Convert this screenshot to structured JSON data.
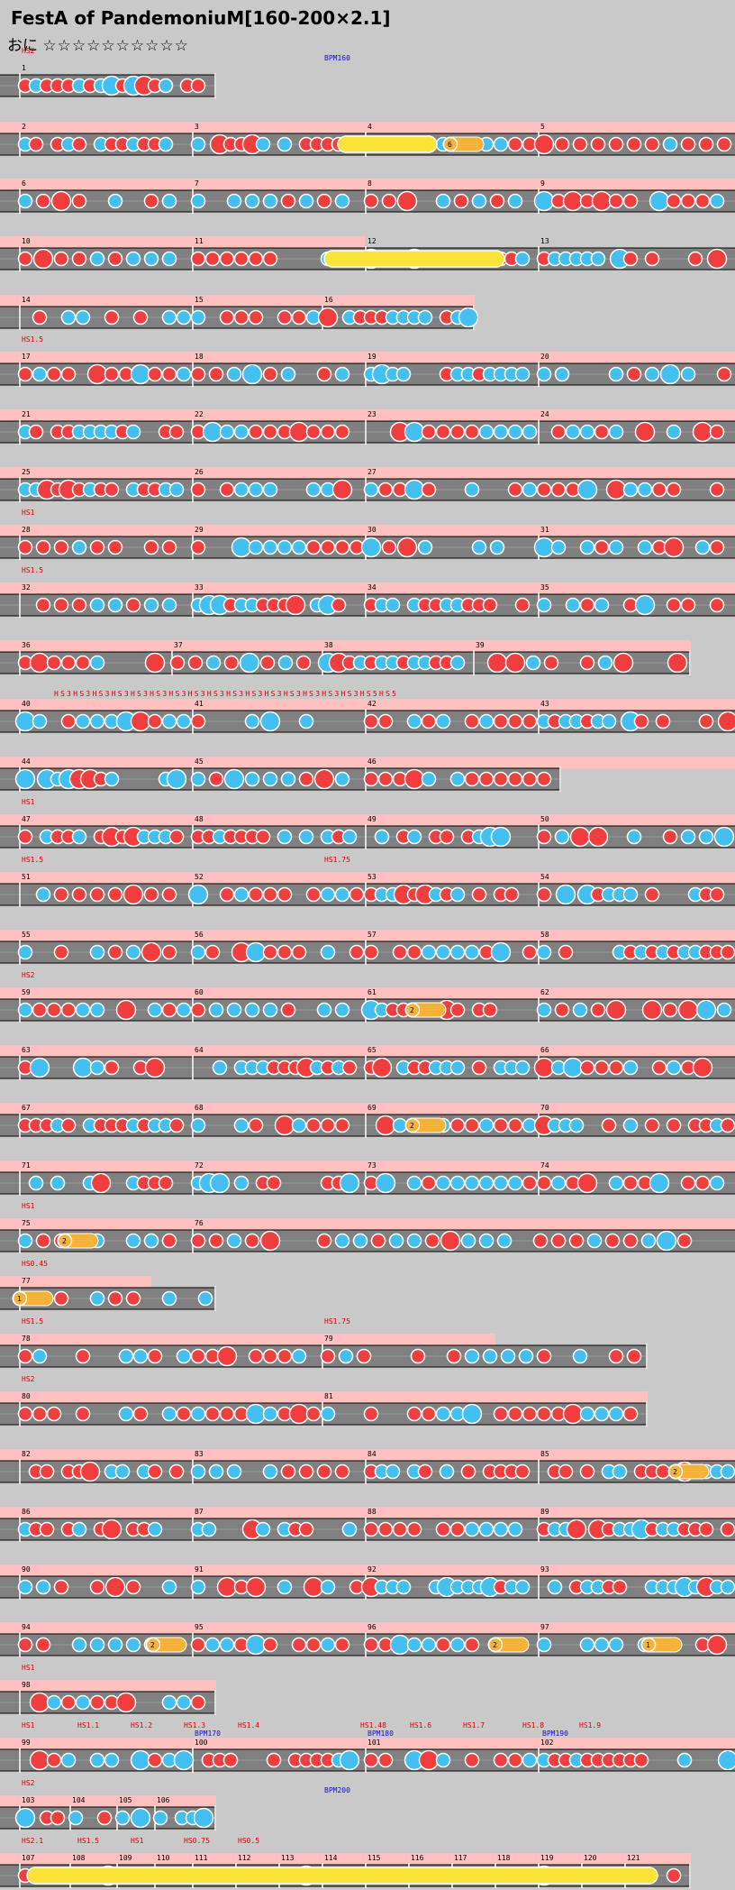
{
  "title": "FestA of PandemoniuM[160-200×2.1]",
  "difficulty_label": "おに",
  "stars": "☆☆☆☆☆☆☆☆☆☆",
  "colors": {
    "background": "#c9c9c9",
    "lane": "#808080",
    "pink": "#ffc0c0",
    "don": "#f03e3e",
    "ka": "#44c0f0",
    "drumroll": "#fbe43a",
    "balloon": "#f6b33a",
    "text_red": "#e00000",
    "text_blue": "#1010d0"
  },
  "rows": [
    {
      "bar_labels": [
        "1"
      ],
      "marker": [
        "HS2",
        "BPM160"
      ]
    },
    {
      "bar_labels": [
        "2",
        "3",
        "4",
        "5"
      ],
      "balloon_count": "6"
    },
    {
      "bar_labels": [
        "6",
        "7",
        "8",
        "9"
      ]
    },
    {
      "bar_labels": [
        "10",
        "11",
        "12",
        "13"
      ]
    },
    {
      "bar_labels": [
        "14",
        "15",
        "16"
      ]
    },
    {
      "bar_labels": [
        "17",
        "18",
        "19",
        "20"
      ],
      "marker": [
        "HS1.5"
      ]
    },
    {
      "bar_labels": [
        "21",
        "22",
        "23",
        "24"
      ]
    },
    {
      "bar_labels": [
        "25",
        "26",
        "27"
      ]
    },
    {
      "bar_labels": [
        "28",
        "29",
        "30",
        "31"
      ],
      "marker": [
        "HS1"
      ]
    },
    {
      "bar_labels": [
        "32",
        "33",
        "34",
        "35"
      ],
      "marker": [
        "HS1.5"
      ]
    },
    {
      "bar_labels": [
        "36",
        "37",
        "38",
        "39"
      ]
    },
    {
      "bar_labels": [
        "40",
        "41",
        "42",
        "43"
      ],
      "scroll_text": "HS3HS3HS3HS3HS3HS3HS3HS3HS3HS3HS3HS3HS3HS3HS3HS3HS5HS5"
    },
    {
      "bar_labels": [
        "44",
        "45",
        "46"
      ]
    },
    {
      "bar_labels": [
        "47",
        "48",
        "49",
        "50"
      ],
      "marker": [
        "HS1"
      ]
    },
    {
      "bar_labels": [
        "51",
        "52",
        "53",
        "54"
      ],
      "marker": [
        "HS1.5",
        "HS1.75"
      ]
    },
    {
      "bar_labels": [
        "55",
        "56",
        "57",
        "58"
      ]
    },
    {
      "bar_labels": [
        "59",
        "60",
        "61",
        "62"
      ],
      "marker": [
        "HS2"
      ],
      "balloon_count": "2"
    },
    {
      "bar_labels": [
        "63",
        "64",
        "65",
        "66"
      ]
    },
    {
      "bar_labels": [
        "67",
        "68",
        "69",
        "70"
      ],
      "balloon_count": "2"
    },
    {
      "bar_labels": [
        "71",
        "72",
        "73",
        "74"
      ]
    },
    {
      "bar_labels": [
        "75",
        "76"
      ],
      "marker": [
        "HS1"
      ],
      "balloon_count": "2"
    },
    {
      "bar_labels": [
        "77"
      ],
      "marker": [
        "HS0.45"
      ],
      "balloon_count": "1"
    },
    {
      "bar_labels": [
        "78",
        "79"
      ],
      "marker": [
        "HS1.5",
        "HS1.75"
      ]
    },
    {
      "bar_labels": [
        "80",
        "81"
      ],
      "marker": [
        "HS2"
      ]
    },
    {
      "bar_labels": [
        "82",
        "83",
        "84",
        "85"
      ],
      "balloon_count": "2"
    },
    {
      "bar_labels": [
        "86",
        "87",
        "88",
        "89"
      ]
    },
    {
      "bar_labels": [
        "90",
        "91",
        "92",
        "93"
      ]
    },
    {
      "bar_labels": [
        "94",
        "95",
        "96",
        "97"
      ],
      "balloon_counts": [
        "2",
        "2",
        "1"
      ]
    },
    {
      "bar_labels": [
        "98"
      ],
      "marker": [
        "HS1"
      ]
    },
    {
      "bar_labels": [
        "99",
        "100",
        "101",
        "102"
      ],
      "markers": [
        "HS1",
        "HS1.1",
        "HS1.2",
        "HS1.3",
        "HS1.4",
        "HS1.48",
        "HS1.6",
        "HS1.7",
        "HS1.8",
        "HS1.9"
      ],
      "bpm": [
        "BPM170",
        "BPM180",
        "BPM190"
      ]
    },
    {
      "bar_labels": [
        "103",
        "104",
        "105",
        "106"
      ],
      "marker": [
        "HS2",
        "BPM200"
      ]
    },
    {
      "bar_labels": [
        "107",
        "108",
        "109",
        "110",
        "111",
        "112",
        "113",
        "114",
        "115",
        "116",
        "117",
        "118",
        "119",
        "120",
        "121"
      ],
      "markers": [
        "HS2.1",
        "HS1.5",
        "HS1",
        "HS0.75",
        "HS0.5"
      ]
    }
  ]
}
